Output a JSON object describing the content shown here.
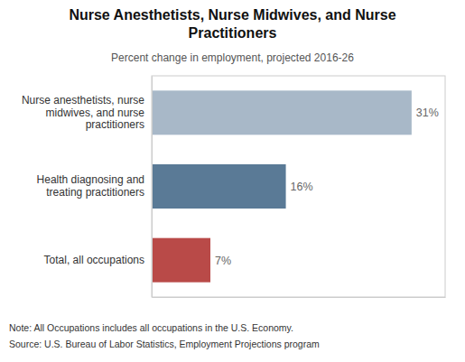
{
  "chart_data": {
    "type": "bar",
    "orientation": "horizontal",
    "title": "Nurse Anesthetists, Nurse Midwives, and Nurse\nPractitioners",
    "subtitle": "Percent change in employment, projected 2016-26",
    "categories": [
      "Total, all occupations",
      "Health diagnosing and\ntreating practitioners",
      "Nurse anesthetists, nurse\nmidwives, and nurse\npractitioners"
    ],
    "values": [
      7,
      16,
      31
    ],
    "value_labels": [
      "7%",
      "16%",
      "31%"
    ],
    "colors": [
      "#b94a48",
      "#5a7a96",
      "#a8b8c8"
    ],
    "data_labels": true,
    "xlim": [
      0,
      35
    ],
    "xticks": [],
    "tick_labels": "y",
    "annotations": [
      "Note: All Occupations includes all occupations in the U.S. Economy.",
      "Source: U.S. Bureau of Labor Statistics, Employment Projections program"
    ]
  }
}
